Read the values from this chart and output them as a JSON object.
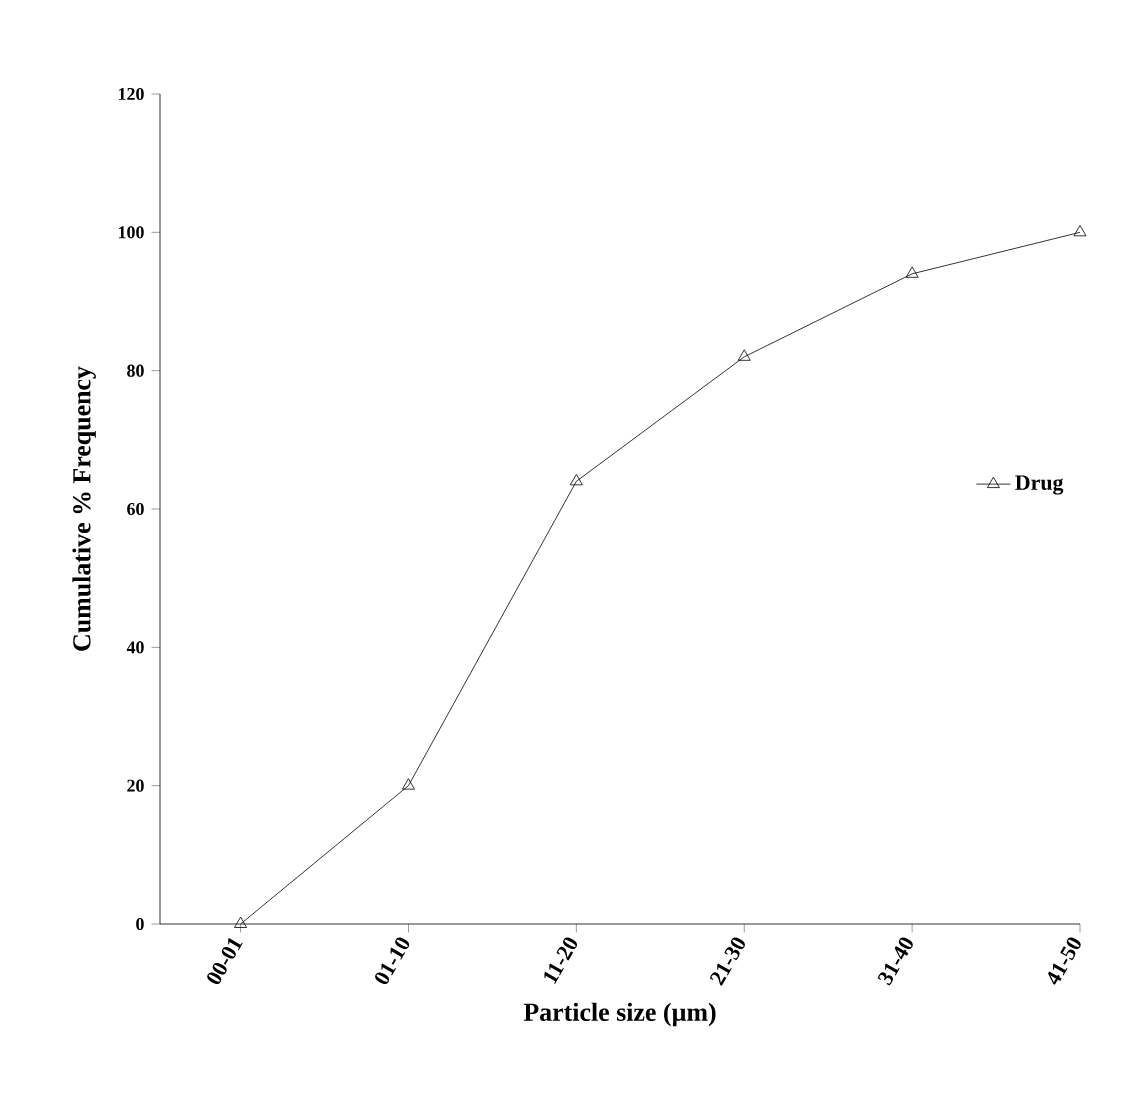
{
  "chart_data": {
    "type": "line",
    "xlabel": "Particle size (µm)",
    "ylabel": "Cumulative % Frequency",
    "categories": [
      "00-01",
      "01-10",
      "11-20",
      "21-30",
      "31-40",
      "41-50"
    ],
    "series": [
      {
        "name": "Drug",
        "color": "#000000",
        "values": [
          0,
          20,
          64,
          82,
          94,
          100
        ]
      }
    ],
    "ylim": [
      0,
      120
    ],
    "yticks": [
      0,
      20,
      40,
      60,
      80,
      100,
      120
    ],
    "marker": "triangle",
    "line_style": "solid",
    "legend": "right"
  }
}
